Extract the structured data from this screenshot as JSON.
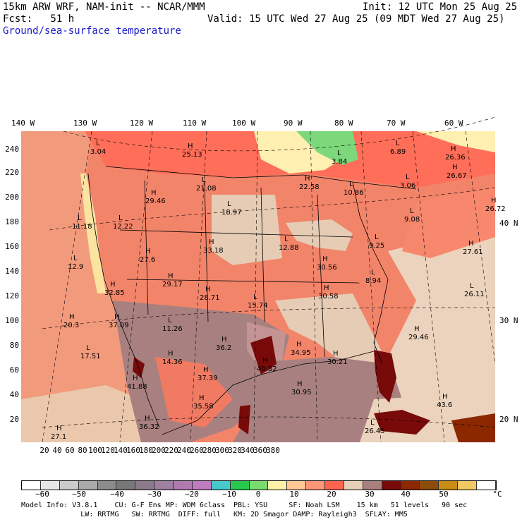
{
  "header": {
    "line1_left": "15km ARW WRF, NAM-init -- NCAR/MMM",
    "line1_right": "Init: 12 UTC Mon 25 Aug 25",
    "line2_left": "Fcst:   51 h",
    "line2_right": "Valid: 15 UTC Wed 27 Aug 25 (09 MDT Wed 27 Aug 25)",
    "line3": "Ground/sea-surface temperature"
  },
  "longitude_labels": [
    "140 W",
    "130 W",
    "120 W",
    "110 W",
    "100 W",
    "90 W",
    "80 W",
    "70 W",
    "60 W"
  ],
  "left_axis_ticks": [
    "240",
    "220",
    "200",
    "180",
    "160",
    "140",
    "120",
    "100",
    "80",
    "60",
    "40",
    "20"
  ],
  "right_lat_labels": [
    "40 N",
    "30 N",
    "20 N"
  ],
  "bottom_axis_ticks": [
    "20",
    "40",
    "60",
    "80",
    "100",
    "120",
    "140",
    "160",
    "180",
    "200",
    "220",
    "240",
    "260",
    "280",
    "300",
    "320",
    "340",
    "360",
    "380"
  ],
  "colorbar": {
    "unit": "°C",
    "labels": [
      "−60",
      "−50",
      "−40",
      "−30",
      "−20",
      "−10",
      "0",
      "10",
      "20",
      "30",
      "40",
      "50"
    ],
    "colors": [
      "#ffffff",
      "#e6e6e6",
      "#cccccc",
      "#aaaaaa",
      "#8c8c8c",
      "#787878",
      "#8c7a8c",
      "#a080a0",
      "#b07ab0",
      "#c07ac0",
      "#48c8c8",
      "#28c850",
      "#78dc6e",
      "#fff0a8",
      "#ffc896",
      "#ff9678",
      "#ff6450",
      "#e8d0b8",
      "#a88080",
      "#780a0a",
      "#8c2800",
      "#8c4c0a",
      "#c88c14",
      "#f0c864",
      "#ffffff"
    ]
  },
  "map_labels": [
    {
      "letter": "L",
      "value": "3.04"
    },
    {
      "letter": "H",
      "value": "25.13"
    },
    {
      "letter": "L",
      "value": "21.08"
    },
    {
      "letter": "L",
      "value": "3.84"
    },
    {
      "letter": "L",
      "value": "6.89"
    },
    {
      "letter": "H",
      "value": "26.36"
    },
    {
      "letter": "H",
      "value": "26.67"
    },
    {
      "letter": "H",
      "value": "29.46"
    },
    {
      "letter": "L",
      "value": "18.97"
    },
    {
      "letter": "H",
      "value": "22.58"
    },
    {
      "letter": "L",
      "value": "10.86"
    },
    {
      "letter": "L",
      "value": "3.06"
    },
    {
      "letter": "H",
      "value": "26.72"
    },
    {
      "letter": "L",
      "value": "11.18"
    },
    {
      "letter": "L",
      "value": "12.22"
    },
    {
      "letter": "L",
      "value": "9.08"
    },
    {
      "letter": "H",
      "value": "33.18"
    },
    {
      "letter": "L",
      "value": "12.88"
    },
    {
      "letter": "L",
      "value": "9.25"
    },
    {
      "letter": "H",
      "value": "27.61"
    },
    {
      "letter": "H",
      "value": "27.6"
    },
    {
      "letter": "L",
      "value": "12.9"
    },
    {
      "letter": "H",
      "value": "30.56"
    },
    {
      "letter": "L",
      "value": "8.94"
    },
    {
      "letter": "H",
      "value": "29.17"
    },
    {
      "letter": "H",
      "value": "32.85"
    },
    {
      "letter": "H",
      "value": "28.71"
    },
    {
      "letter": "L",
      "value": "15.74"
    },
    {
      "letter": "H",
      "value": "30.58"
    },
    {
      "letter": "L",
      "value": "26.11"
    },
    {
      "letter": "H",
      "value": "20.3"
    },
    {
      "letter": "H",
      "value": "37.09"
    },
    {
      "letter": "L",
      "value": "11.26"
    },
    {
      "letter": "H",
      "value": "29.46"
    },
    {
      "letter": "H",
      "value": "36.2"
    },
    {
      "letter": "H",
      "value": "34.95"
    },
    {
      "letter": "L",
      "value": "17.51"
    },
    {
      "letter": "H",
      "value": "14.36"
    },
    {
      "letter": "H",
      "value": "40.82"
    },
    {
      "letter": "H",
      "value": "30.21"
    },
    {
      "letter": "H",
      "value": "37.39"
    },
    {
      "letter": "H",
      "value": "41.88"
    },
    {
      "letter": "H",
      "value": "30.95"
    },
    {
      "letter": "H",
      "value": "35.58"
    },
    {
      "letter": "H",
      "value": "43.6"
    },
    {
      "letter": "H",
      "value": "36.32"
    },
    {
      "letter": "H",
      "value": "27.1"
    },
    {
      "letter": "L",
      "value": "26.45"
    }
  ],
  "footer": {
    "line1": "Model Info: V3.8.1    CU: G-F Ens MP: WDM 6class  PBL: YSU     SF: Noah LSM    15 km   51 levels   90 sec",
    "line2": "              LW: RRTMG   SW: RRTMG  DIFF: full   KM: 2D Smagor DAMP: Rayleigh3  SFLAY: MM5"
  }
}
